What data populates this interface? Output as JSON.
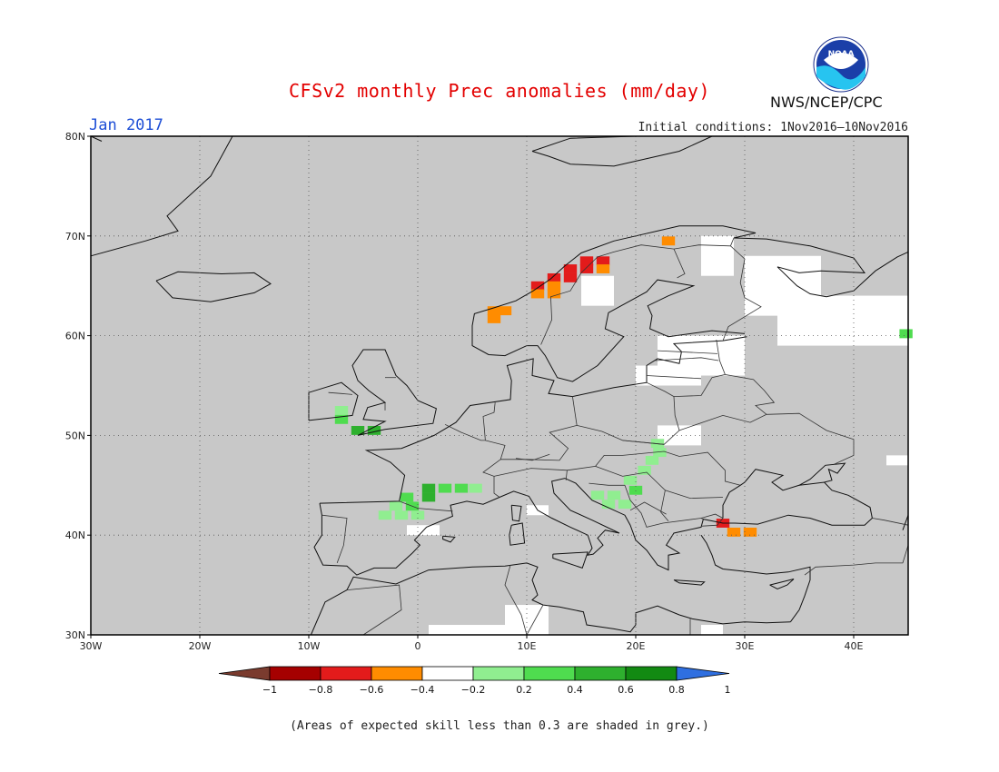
{
  "header": {
    "title": "CFSv2 monthly Prec anomalies (mm/day)",
    "month": "Jan 2017",
    "initial_conditions": "Initial conditions: 1Nov2016–10Nov2016",
    "agency": "NWS/NCEP/CPC",
    "logo_text": "NOAA"
  },
  "map": {
    "region": "Europe",
    "lon_range": [
      -30,
      45
    ],
    "lat_range": [
      30,
      80
    ],
    "lon_ticks": [
      {
        "lon": -30,
        "label": "30W"
      },
      {
        "lon": -20,
        "label": "20W"
      },
      {
        "lon": -10,
        "label": "10W"
      },
      {
        "lon": 0,
        "label": "0"
      },
      {
        "lon": 10,
        "label": "10E"
      },
      {
        "lon": 20,
        "label": "20E"
      },
      {
        "lon": 30,
        "label": "30E"
      },
      {
        "lon": 40,
        "label": "40E"
      }
    ],
    "lat_ticks": [
      {
        "lat": 30,
        "label": "30N"
      },
      {
        "lat": 40,
        "label": "40N"
      },
      {
        "lat": 50,
        "label": "50N"
      },
      {
        "lat": 60,
        "label": "60N"
      },
      {
        "lat": 70,
        "label": "70N"
      },
      {
        "lat": 80,
        "label": "80N"
      }
    ],
    "background_color": "#c8c8c8",
    "anomaly_cells": [
      {
        "lon": 15.5,
        "lat": 67.5,
        "v": -0.7
      },
      {
        "lon": 17,
        "lat": 67.5,
        "v": -0.6
      },
      {
        "lon": 14,
        "lat": 66.7,
        "v": -0.7
      },
      {
        "lon": 15.5,
        "lat": 66.7,
        "v": -0.6
      },
      {
        "lon": 17,
        "lat": 66.7,
        "v": -0.4
      },
      {
        "lon": 12.5,
        "lat": 65.8,
        "v": -0.6
      },
      {
        "lon": 14,
        "lat": 65.8,
        "v": -0.6
      },
      {
        "lon": 11,
        "lat": 65,
        "v": -0.6
      },
      {
        "lon": 12.5,
        "lat": 65,
        "v": -0.4
      },
      {
        "lon": 11,
        "lat": 64.2,
        "v": -0.3
      },
      {
        "lon": 12.5,
        "lat": 64.2,
        "v": -0.3
      },
      {
        "lon": 7,
        "lat": 62.5,
        "v": -0.3
      },
      {
        "lon": 8,
        "lat": 62.5,
        "v": -0.3
      },
      {
        "lon": 7,
        "lat": 61.7,
        "v": -0.3
      },
      {
        "lon": 23,
        "lat": 69.5,
        "v": -0.3
      },
      {
        "lon": 28,
        "lat": 41.2,
        "v": -0.6
      },
      {
        "lon": 29,
        "lat": 40.3,
        "v": -0.3
      },
      {
        "lon": 30.5,
        "lat": 40.3,
        "v": -0.3
      },
      {
        "lon": -5.5,
        "lat": 50.5,
        "v": 0.7
      },
      {
        "lon": -4,
        "lat": 50.5,
        "v": 0.7
      },
      {
        "lon": -7,
        "lat": 52.5,
        "v": 0.3
      },
      {
        "lon": -7,
        "lat": 51.6,
        "v": 0.5
      },
      {
        "lon": 1,
        "lat": 44.7,
        "v": 0.7
      },
      {
        "lon": 2.5,
        "lat": 44.7,
        "v": 0.5
      },
      {
        "lon": 4,
        "lat": 44.7,
        "v": 0.5
      },
      {
        "lon": 5.3,
        "lat": 44.7,
        "v": 0.3
      },
      {
        "lon": -1,
        "lat": 43.8,
        "v": 0.5
      },
      {
        "lon": -0.5,
        "lat": 42.9,
        "v": 0.5
      },
      {
        "lon": 1,
        "lat": 43.8,
        "v": 0.7
      },
      {
        "lon": -2,
        "lat": 42.9,
        "v": 0.3
      },
      {
        "lon": -3,
        "lat": 42,
        "v": 0.3
      },
      {
        "lon": -1.5,
        "lat": 42,
        "v": 0.3
      },
      {
        "lon": 0,
        "lat": 42,
        "v": 0.3
      },
      {
        "lon": 16.5,
        "lat": 44,
        "v": 0.3
      },
      {
        "lon": 18,
        "lat": 44,
        "v": 0.3
      },
      {
        "lon": 17.5,
        "lat": 43.1,
        "v": 0.3
      },
      {
        "lon": 19,
        "lat": 43.1,
        "v": 0.3
      },
      {
        "lon": 20,
        "lat": 44.5,
        "v": 0.5
      },
      {
        "lon": 20.8,
        "lat": 46.5,
        "v": 0.3
      },
      {
        "lon": 21.5,
        "lat": 47.5,
        "v": 0.3
      },
      {
        "lon": 22.2,
        "lat": 48.3,
        "v": 0.3
      },
      {
        "lon": 22,
        "lat": 49.2,
        "v": 0.3
      },
      {
        "lon": 19.5,
        "lat": 45.5,
        "v": 0.3
      },
      {
        "lon": 44.8,
        "lat": 60.2,
        "v": 0.5
      }
    ],
    "low_skill_white_cells": [
      {
        "lon": 26,
        "lat": 66,
        "w": 3,
        "h": 4
      },
      {
        "lon": 30,
        "lat": 62,
        "w": 7,
        "h": 6
      },
      {
        "lon": 33,
        "lat": 59,
        "w": 12,
        "h": 5
      },
      {
        "lon": 22,
        "lat": 56,
        "w": 8,
        "h": 4
      },
      {
        "lon": 20,
        "lat": 55,
        "w": 6,
        "h": 2
      },
      {
        "lon": 37,
        "lat": 61,
        "w": 8,
        "h": 3
      },
      {
        "lon": 22,
        "lat": 49,
        "w": 4,
        "h": 2
      },
      {
        "lon": 8,
        "lat": 30,
        "w": 4,
        "h": 3
      },
      {
        "lon": 1,
        "lat": 30,
        "w": 7,
        "h": 1
      },
      {
        "lon": -1,
        "lat": 40,
        "w": 3,
        "h": 1
      },
      {
        "lon": 10,
        "lat": 42,
        "w": 2,
        "h": 1
      },
      {
        "lon": 15,
        "lat": 63,
        "w": 3,
        "h": 3
      },
      {
        "lon": 26,
        "lat": 30,
        "w": 2,
        "h": 1
      },
      {
        "lon": 43,
        "lat": 47,
        "w": 2,
        "h": 1
      }
    ]
  },
  "colorbar": {
    "labels": [
      "−1",
      "−0.8",
      "−0.6",
      "−0.4",
      "−0.2",
      "0.2",
      "0.4",
      "0.6",
      "0.8",
      "1"
    ],
    "colors": [
      "#a50000",
      "#e31b1b",
      "#ff8c00",
      "#ffffff",
      "#90ee90",
      "#4fdc4f",
      "#2eb02e",
      "#128a12"
    ],
    "low_color": "#7a3b2e",
    "high_color": "#2f6fe0"
  },
  "footnote": "(Areas of expected skill less than 0.3 are shaded in grey.)"
}
